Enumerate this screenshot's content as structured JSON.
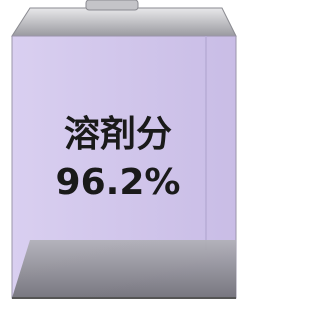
{
  "can": {
    "label": "溶剤分",
    "value_text": "96.2%"
  }
}
